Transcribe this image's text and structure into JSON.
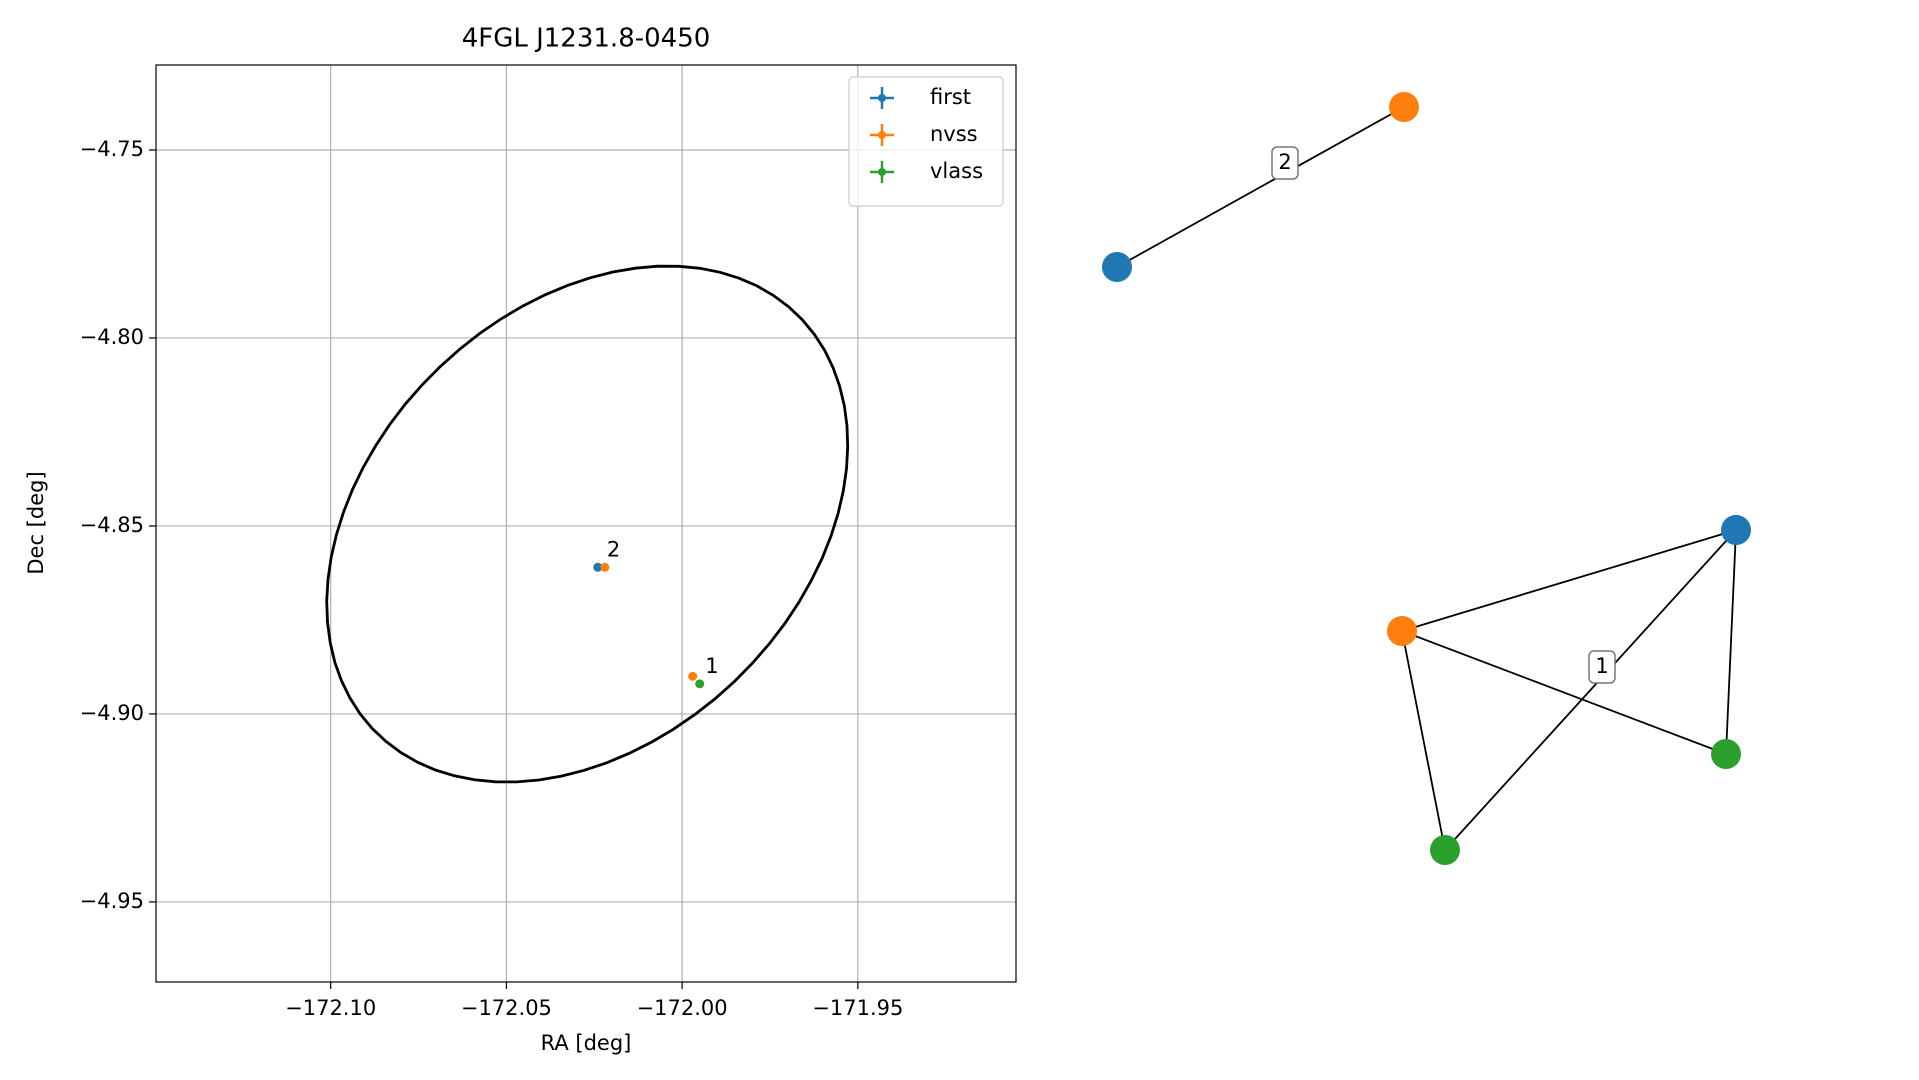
{
  "chart_data": {
    "type": "scatter",
    "title": "4FGL J1231.8-0450",
    "x_label": "RA [deg]",
    "y_label": "Dec [deg]",
    "xlim": [
      -172.1497,
      -171.905
    ],
    "ylim": [
      -4.9713,
      -4.7274
    ],
    "xticks": [
      {
        "value": -172.1,
        "label": "−172.10"
      },
      {
        "value": -172.05,
        "label": "−172.05"
      },
      {
        "value": -172.0,
        "label": "−172.00"
      },
      {
        "value": -171.95,
        "label": "−171.95"
      }
    ],
    "yticks": [
      {
        "value": -4.75,
        "label": "−4.75"
      },
      {
        "value": -4.8,
        "label": "−4.80"
      },
      {
        "value": -4.85,
        "label": "−4.85"
      },
      {
        "value": -4.9,
        "label": "−4.90"
      },
      {
        "value": -4.95,
        "label": "−4.95"
      }
    ],
    "grid": true,
    "legend": "upper right",
    "series": [
      {
        "name": "first",
        "color": "#1f77b4",
        "x": [
          -172.024
        ],
        "y": [
          -4.861
        ]
      },
      {
        "name": "nvss",
        "color": "#ff7f0e",
        "x": [
          -172.022,
          -171.997
        ],
        "y": [
          -4.861,
          -4.89
        ]
      },
      {
        "name": "vlass",
        "color": "#2ca02c",
        "x": [
          -171.995
        ],
        "y": [
          -4.892
        ]
      }
    ],
    "ellipse": {
      "x": -172.027,
      "y": -4.8495,
      "width": 0.164,
      "height": 0.118,
      "angle": 38,
      "color": "#000000"
    },
    "annotations": [
      {
        "text": "2",
        "x": -172.0195,
        "y": -4.8565
      },
      {
        "text": "1",
        "x": -171.9915,
        "y": -4.8875
      }
    ]
  },
  "graph": {
    "edge_labels": [
      "2",
      "1"
    ]
  }
}
